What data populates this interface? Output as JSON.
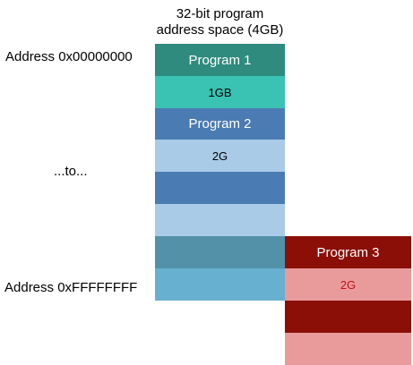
{
  "title": {
    "line1": "32-bit program",
    "line2": "address space (4GB)"
  },
  "labels": {
    "start_address": "Address 0x00000000",
    "middle": "...to...",
    "end_address": "Address 0xFFFFFFFF"
  },
  "address_space": {
    "program1": {
      "label": "Program 1",
      "size_label": "1GB"
    },
    "program2": {
      "label": "Program 2",
      "size_label": "2G"
    }
  },
  "program3": {
    "label": "Program 3",
    "size_label": "2G"
  },
  "colors": {
    "program1": "#2e8b7e",
    "program1_size": "#3ac2b2",
    "program2": "#4a7bb3",
    "program2_size": "#a9cbe8",
    "overlap_dark": "#5291a8",
    "overlap_light": "#67b0d0",
    "program3": "#8b0f07",
    "program3_size": "#e99b9b",
    "program3_size_text": "#c0111f"
  }
}
